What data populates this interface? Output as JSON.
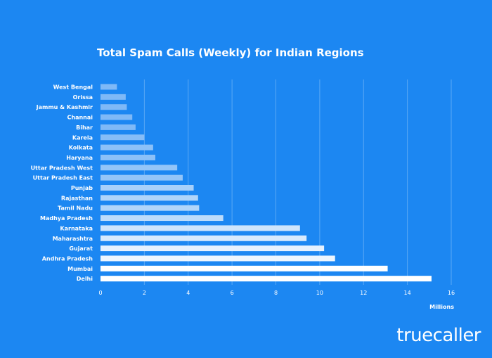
{
  "chart_data": {
    "type": "bar",
    "orientation": "horizontal",
    "title": "Total Spam Calls (Weekly) for Indian Regions",
    "xlabel": "Millions",
    "ylabel": "",
    "xlim": [
      0,
      16
    ],
    "xticks": [
      0,
      2,
      4,
      6,
      8,
      10,
      12,
      14,
      16
    ],
    "grid": true,
    "categories": [
      "West Bengal",
      "Orissa",
      "Jammu & Kashmir",
      "Channai",
      "Bihar",
      "Karela",
      "Kolkata",
      "Haryana",
      "Uttar Pradesh West",
      "Uttar Pradesh East",
      "Punjab",
      "Rajasthan",
      "Tamil Nadu",
      "Madhya Pradesh",
      "Karnataka",
      "Maharashtra",
      "Gujarat",
      "Andhra Pradesh",
      "Mumbai",
      "Delhi"
    ],
    "values": [
      0.75,
      1.15,
      1.2,
      1.45,
      1.6,
      2.0,
      2.4,
      2.5,
      3.5,
      3.75,
      4.25,
      4.45,
      4.5,
      5.6,
      9.1,
      9.4,
      10.2,
      10.7,
      13.1,
      15.1
    ],
    "colors": [
      "#7fb9f7",
      "#7fb9f7",
      "#7fb9f7",
      "#7fb9f7",
      "#7fb9f7",
      "#86bdf7",
      "#8cc1f8",
      "#8cc1f8",
      "#94c5f8",
      "#94c5f8",
      "#a8d0fa",
      "#b0d5fa",
      "#b0d5fa",
      "#bddcfb",
      "#cfe5fc",
      "#d8eafd",
      "#e6f1fe",
      "#eef6fe",
      "#ffffff",
      "#ffffff"
    ]
  },
  "brand": {
    "logo_text": "truecaller"
  },
  "theme": {
    "background": "#1c87f2",
    "gridline": "#5aa8f5"
  }
}
